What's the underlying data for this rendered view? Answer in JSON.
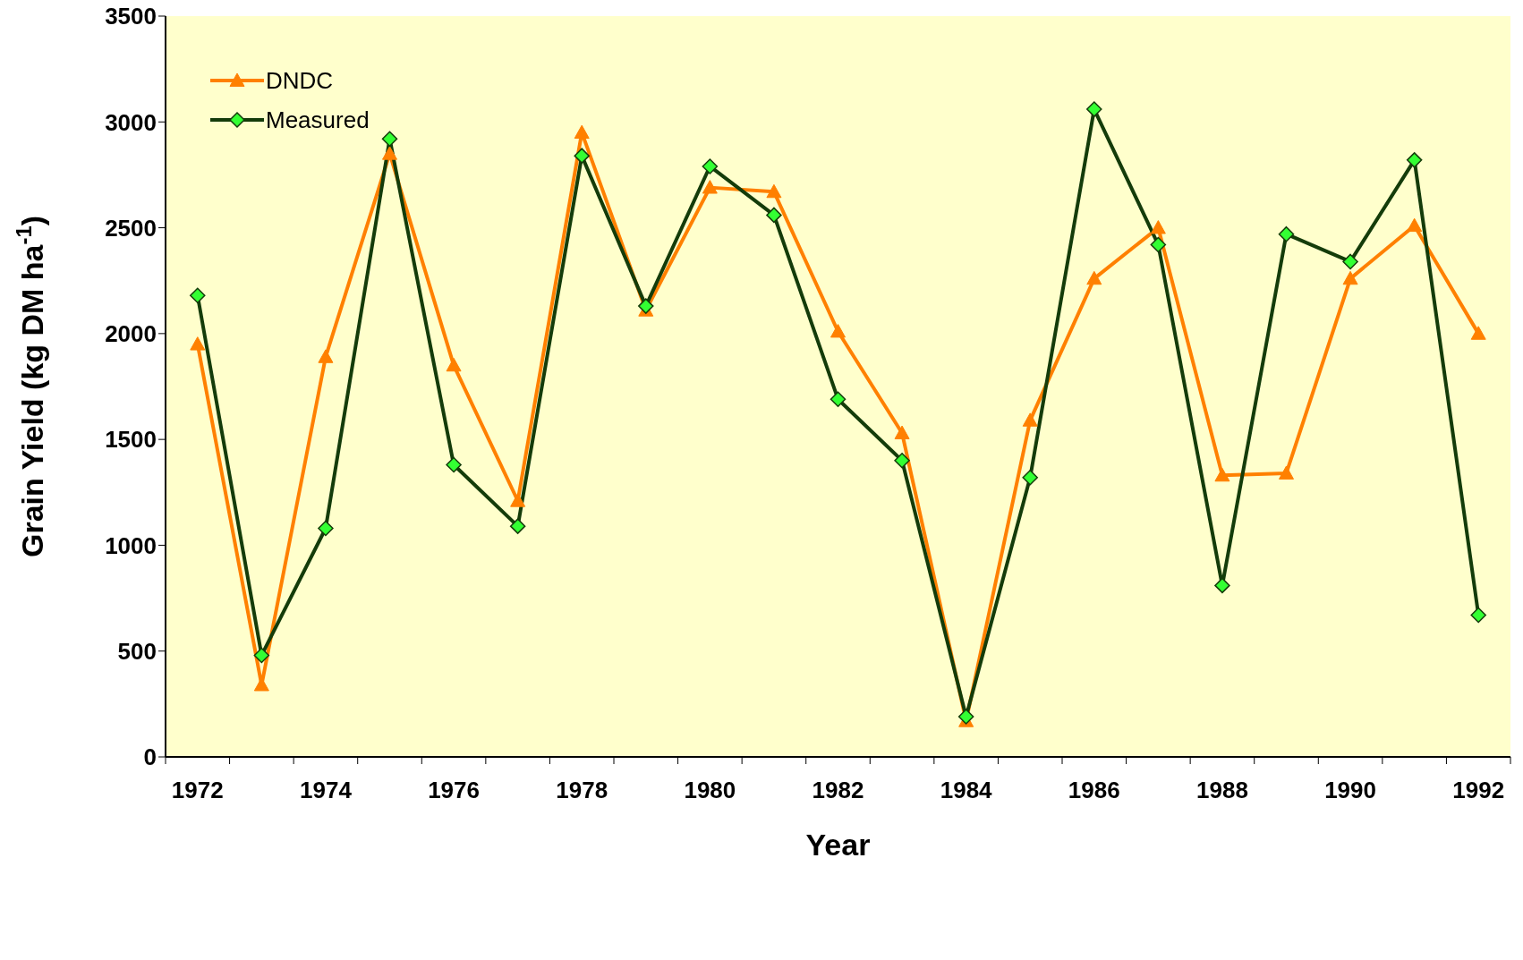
{
  "chart_data": {
    "type": "line",
    "xlabel": "Year",
    "ylabel": "Grain Yield (kg DM ha$^{-1}$)",
    "categories": [
      "1972",
      null,
      "1974",
      null,
      "1976",
      null,
      "1978",
      null,
      "1980",
      null,
      "1982",
      null,
      "1984",
      null,
      "1986",
      null,
      "1988",
      null,
      "1990",
      null,
      "1992"
    ],
    "series": [
      {
        "name": "DNDC",
        "color": "#ff8000",
        "marker": "triangle",
        "values": [
          1950,
          340,
          1890,
          2850,
          1850,
          1210,
          2950,
          2110,
          2690,
          2670,
          2010,
          1530,
          170,
          1590,
          2260,
          2500,
          1330,
          1340,
          2260,
          2510,
          2000
        ]
      },
      {
        "name": "Measured",
        "color": "#143c0a",
        "marker": "diamond",
        "values": [
          2180,
          480,
          1080,
          2920,
          1380,
          1090,
          2840,
          2130,
          2790,
          2560,
          1690,
          1400,
          190,
          1320,
          3060,
          2420,
          810,
          2470,
          2340,
          2820,
          670
        ]
      }
    ],
    "ylim": [
      0,
      3500
    ],
    "yticks": [
      0,
      500,
      1000,
      1500,
      2000,
      2500,
      3000,
      3500
    ],
    "grid": false,
    "legend": "top left"
  }
}
